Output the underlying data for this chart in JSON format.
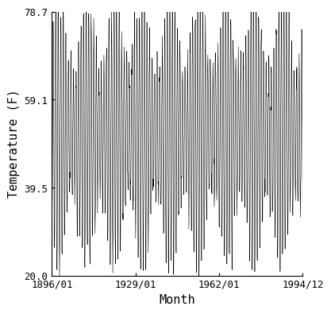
{
  "title": "",
  "xlabel": "Month",
  "ylabel": "Temperature (F)",
  "start_year": 1896,
  "start_month": 1,
  "end_year": 1994,
  "end_month": 12,
  "ylim": [
    20.0,
    78.7
  ],
  "yticks": [
    20.0,
    39.5,
    59.1,
    78.7
  ],
  "xtick_labels": [
    "1896/01",
    "1929/01",
    "1962/01",
    "1994/12"
  ],
  "line_color": "#000000",
  "line_width": 0.4,
  "background_color": "#ffffff",
  "seasonal_amplitude": 22.0,
  "annual_mean": 52.0,
  "envelope_amplitude": 8.0,
  "envelope_period": 11.0,
  "noise_std": 2.5,
  "font_size_ticks": 9,
  "font_size_labels": 11
}
